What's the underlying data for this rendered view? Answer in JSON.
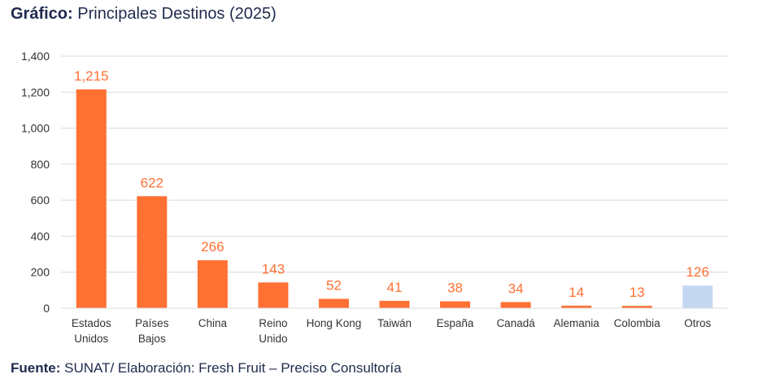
{
  "heading": {
    "prefix": "Gráfico:",
    "text": " Principales Destinos (2025)"
  },
  "footer": {
    "prefix": "Fuente:",
    "text": " SUNAT/ Elaboración: Fresh Fruit – Preciso Consultoría"
  },
  "colors": {
    "bar": "#ff7033",
    "bar_highlight": "#c5d8f1",
    "data_label": "#ff7033",
    "data_label_highlight": "#ff7033",
    "grid": "#d9d9d9"
  },
  "chart_data": {
    "type": "bar",
    "title": "Principales Destinos (2025)",
    "xlabel": "",
    "ylabel": "",
    "ylim": [
      0,
      1400
    ],
    "yticks": [
      0,
      200,
      400,
      600,
      800,
      1000,
      1200,
      1400
    ],
    "ytick_labels": [
      "0",
      "200",
      "400",
      "600",
      "800",
      "1,000",
      "1,200",
      "1,400"
    ],
    "grid": true,
    "categories": [
      [
        "Estados",
        "Unidos"
      ],
      [
        "Países",
        "Bajos"
      ],
      [
        "China"
      ],
      [
        "Reino",
        "Unido"
      ],
      [
        "Hong Kong"
      ],
      [
        "Taiwán"
      ],
      [
        "España"
      ],
      [
        "Canadá"
      ],
      [
        "Alemania"
      ],
      [
        "Colombia"
      ],
      [
        "Otros"
      ]
    ],
    "values": [
      1215,
      622,
      266,
      143,
      52,
      41,
      38,
      34,
      14,
      13,
      126
    ],
    "value_labels": [
      "1,215",
      "622",
      "266",
      "143",
      "52",
      "41",
      "38",
      "34",
      "14",
      "13",
      "126"
    ],
    "highlight_index": 10
  }
}
